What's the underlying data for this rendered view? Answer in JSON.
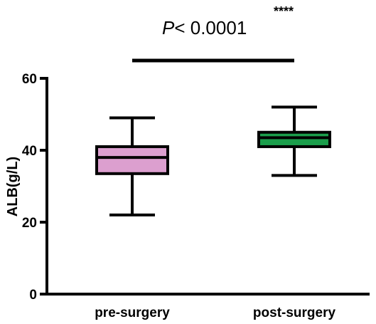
{
  "chart_data": {
    "type": "box",
    "ylabel": "ALB(g/L)",
    "ylim": [
      0,
      60
    ],
    "yticks": [
      0,
      20,
      40,
      60
    ],
    "categories": [
      "pre-surgery",
      "post-surgery"
    ],
    "boxes": [
      {
        "category": "pre-surgery",
        "min": 22,
        "q1": 33.5,
        "median": 38,
        "q3": 41,
        "max": 49,
        "color": "#dc9fcf"
      },
      {
        "category": "post-surgery",
        "min": 33,
        "q1": 41,
        "median": 43.5,
        "q3": 45,
        "max": 52,
        "color": "#1a9e4b"
      }
    ],
    "annotation": {
      "p_italic": "P",
      "p_rest": "< 0.0001",
      "stars": "****"
    }
  }
}
